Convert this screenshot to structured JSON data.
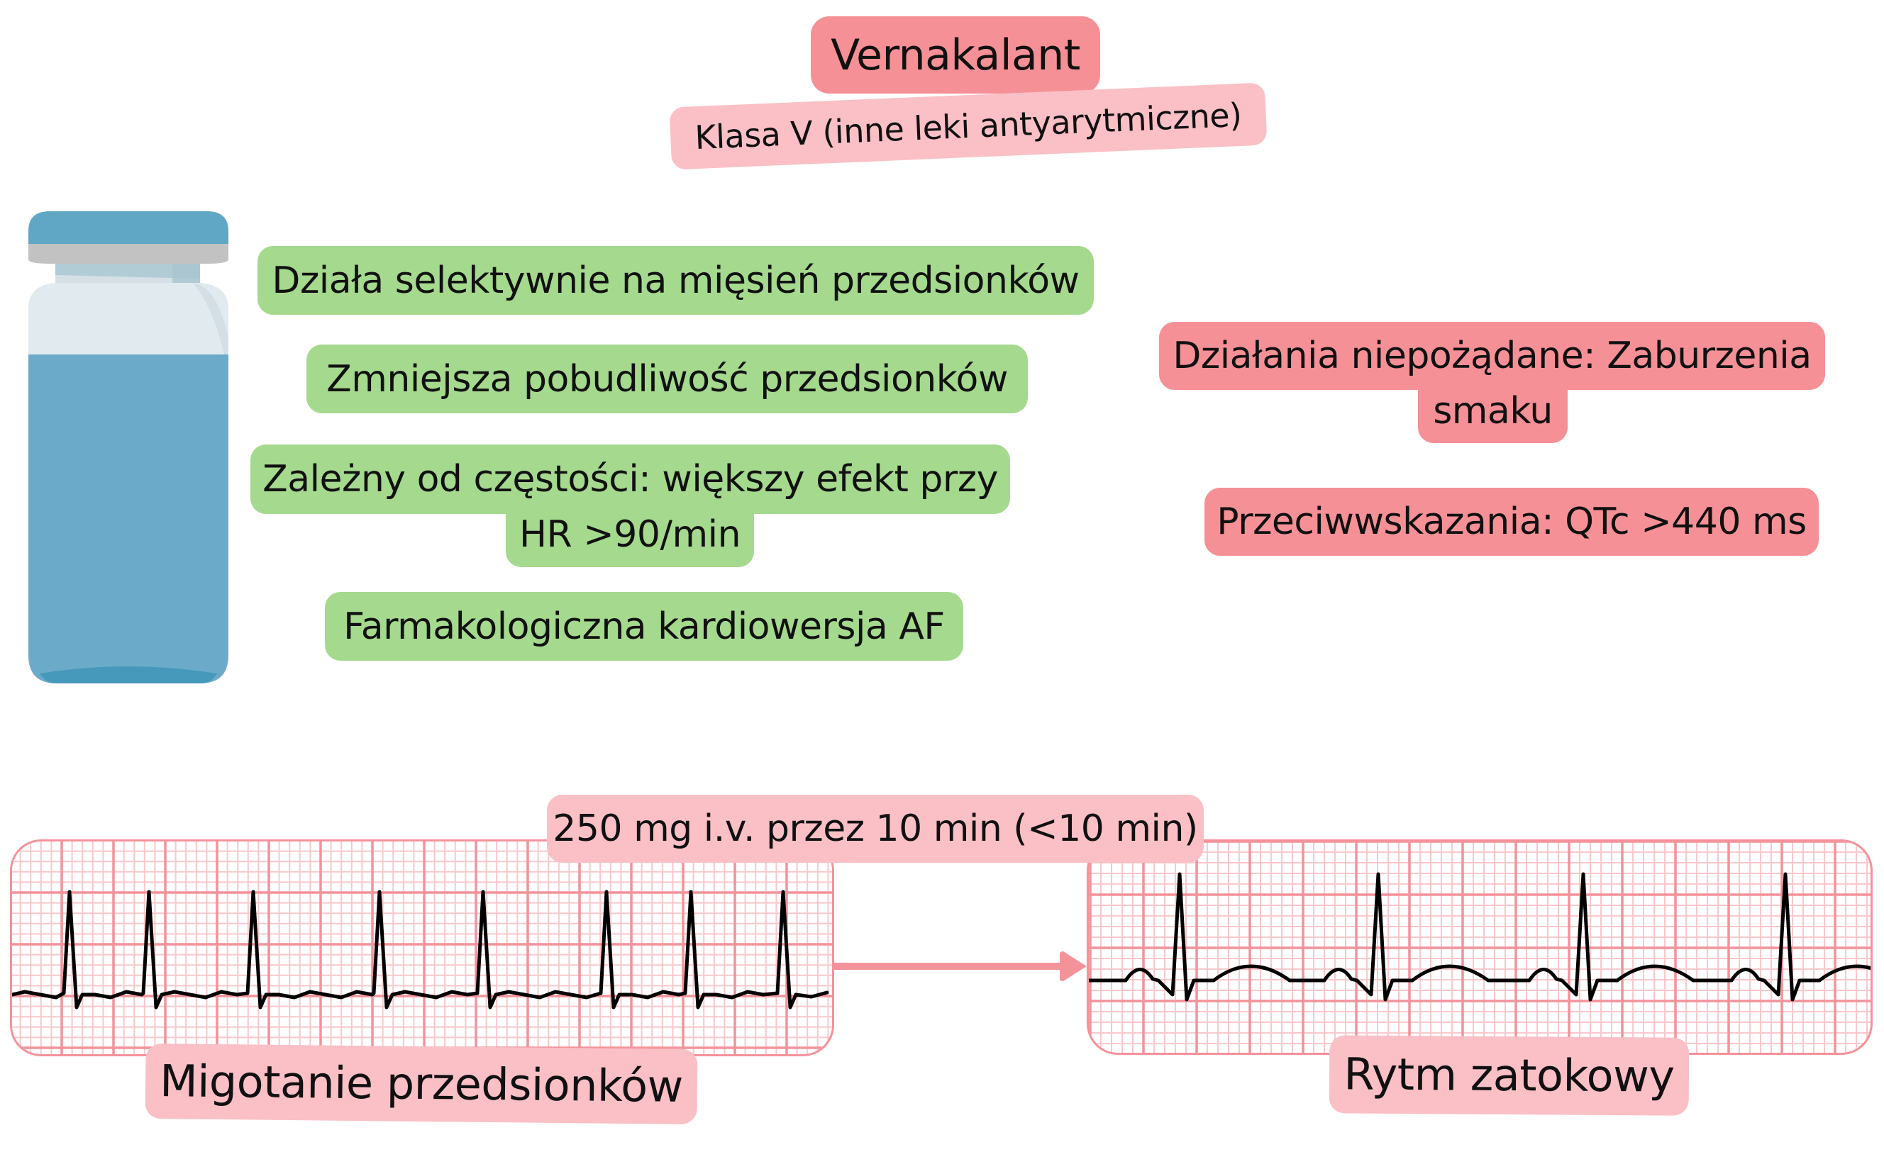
{
  "title": {
    "label": "Vernakalant",
    "color": "#F59096"
  },
  "subtitle": {
    "label": "Klasa V (inne leki antyarytmiczne)",
    "color": "#FAC0C6"
  },
  "mechanisms": {
    "color": "#A5D98E",
    "items": [
      {
        "label": "Działa selektywnie na mięsień przedsionków"
      },
      {
        "label": "Zmniejsza pobudliwość przedsionków"
      },
      {
        "line1": "Zależny od częstości: większy efekt przy",
        "line2": "HR >90/min"
      },
      {
        "label": "Farmakologiczna kardiowersja AF"
      }
    ]
  },
  "adverse": {
    "color": "#F59096",
    "line1": "Działania niepożądane: Zaburzenia",
    "line2": "smaku"
  },
  "contraindications": {
    "label": "Przeciwwskazania: QTc >440 ms",
    "color": "#F59096"
  },
  "dosage": {
    "label": "250 mg i.v. przez 10 min (<10 min)",
    "color": "#FAC0C6"
  },
  "vial_icon": "medicine-vial-icon",
  "arrow_icon": "right-arrow-icon",
  "ecg": {
    "grid_major_color": "#F4929A",
    "grid_minor_color": "#F9C8CC",
    "before": {
      "label": "Migotanie przedsionków",
      "rhythm": "atrial-fibrillation",
      "r_peaks_x": [
        95,
        207,
        354,
        532,
        678,
        852,
        971,
        1101
      ]
    },
    "after": {
      "label": "Rytm zatokowy",
      "rhythm": "sinus",
      "r_peaks_x": [
        1660,
        1940,
        2229,
        2514
      ]
    }
  }
}
